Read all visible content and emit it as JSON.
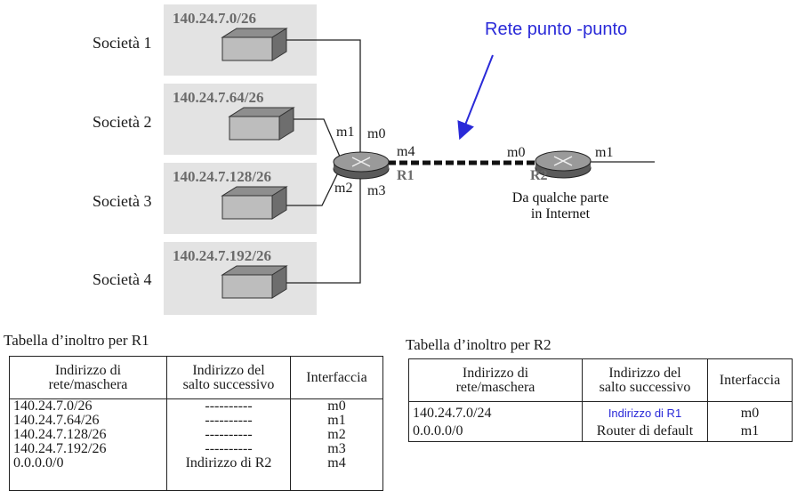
{
  "subnets": [
    {
      "company": "Società 1",
      "address": "140.24.7.0/26"
    },
    {
      "company": "Società 2",
      "address": "140.24.7.64/26"
    },
    {
      "company": "Società 3",
      "address": "140.24.7.128/26"
    },
    {
      "company": "Società 4",
      "address": "140.24.7.192/26"
    }
  ],
  "r1": {
    "name": "R1",
    "interfaces": {
      "m0": "m0",
      "m1": "m1",
      "m2": "m2",
      "m3": "m3",
      "m4": "m4"
    }
  },
  "r2": {
    "name": "R2",
    "interfaces": {
      "m0": "m0",
      "m1": "m1"
    },
    "caption_line1": "Da qualche parte",
    "caption_line2": "in Internet"
  },
  "link_annotation": "Rete punto -punto",
  "colors": {
    "annotation": "#2a2ad8",
    "subnet_bg": "#e3e3e3",
    "label_gray": "#6b6b6b"
  },
  "table_r1": {
    "caption": "Tabella d’inoltro per R1",
    "headers": {
      "network_line1": "Indirizzo di",
      "network_line2": "rete/maschera",
      "next_hop_line1": "Indirizzo del",
      "next_hop_line2": "salto successivo",
      "interface": "Interfaccia"
    },
    "rows": [
      {
        "network": "140.24.7.0/26",
        "next_hop": "----------",
        "interface": "m0"
      },
      {
        "network": "140.24.7.64/26",
        "next_hop": "----------",
        "interface": "m1"
      },
      {
        "network": "140.24.7.128/26",
        "next_hop": "----------",
        "interface": "m2"
      },
      {
        "network": "140.24.7.192/26",
        "next_hop": "----------",
        "interface": "m3"
      },
      {
        "network": "0.0.0.0/0",
        "next_hop": "Indirizzo di R2",
        "interface": "m4"
      }
    ]
  },
  "table_r2": {
    "caption": "Tabella d’inoltro per R2",
    "headers": {
      "network_line1": "Indirizzo di",
      "network_line2": "rete/maschera",
      "next_hop_line1": "Indirizzo del",
      "next_hop_line2": "salto successivo",
      "interface": "Interfaccia"
    },
    "rows": [
      {
        "network": "140.24.7.0/24",
        "next_hop": "Indirizzo di R1",
        "interface": "m0"
      },
      {
        "network": "0.0.0.0/0",
        "next_hop": "Router di default",
        "interface": "m1"
      }
    ]
  }
}
